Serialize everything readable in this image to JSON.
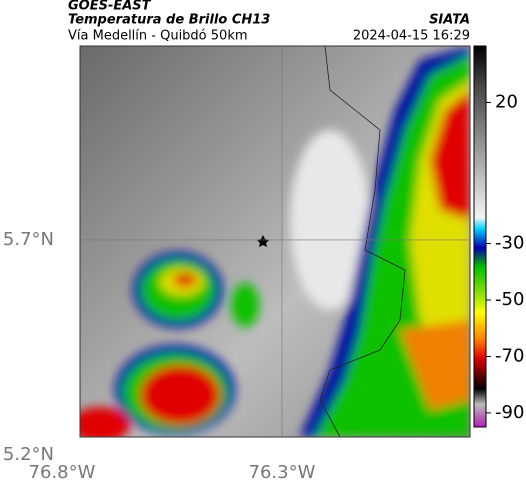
{
  "header": {
    "satellite": "GOES-EAST",
    "product": "Temperatura de Brillo CH13",
    "source": "SIATA",
    "route": "Vía Medellín - Quibdó 50km",
    "timestamp": "2024-04-15 16:29"
  },
  "map": {
    "xlim": [
      -76.8,
      -75.868
    ],
    "ylim": [
      5.2,
      6.151
    ],
    "xticks": [
      {
        "value": -76.8,
        "label": "76.8°W"
      },
      {
        "value": -76.3,
        "label": "76.3°W"
      }
    ],
    "yticks": [
      {
        "value": 5.2,
        "label": "5.2°N"
      },
      {
        "value": 5.7,
        "label": "5.7°N"
      }
    ],
    "grid": true
  },
  "colorbar": {
    "lim": [
      40,
      -95
    ],
    "ticks": [
      20,
      -30,
      -50,
      -70,
      -90
    ]
  }
}
